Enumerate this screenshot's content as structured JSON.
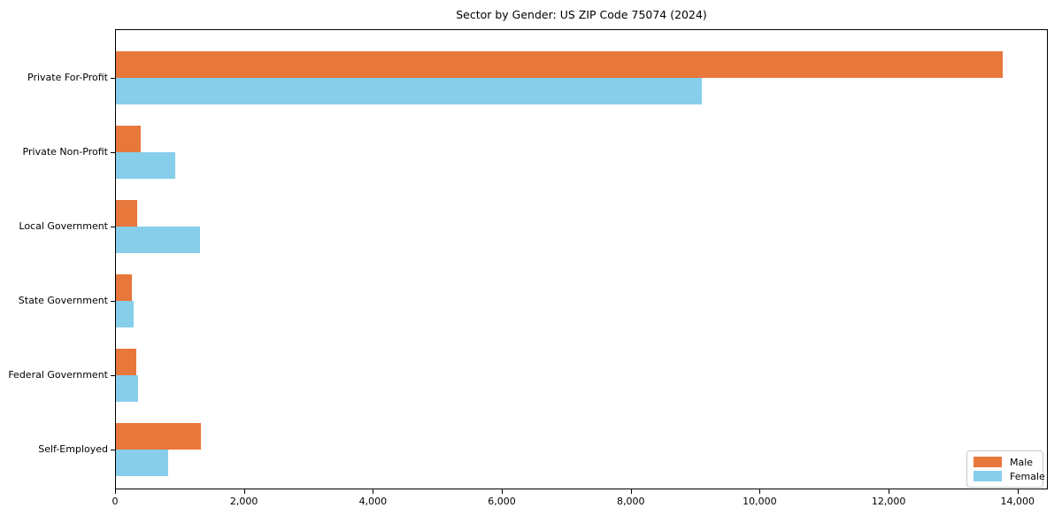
{
  "chart_data": {
    "type": "bar",
    "orientation": "horizontal",
    "title": "Sector by Gender: US ZIP Code 75074 (2024)",
    "categories": [
      "Private For-Profit",
      "Private Non-Profit",
      "Local Government",
      "State Government",
      "Federal Government",
      "Self-Employed"
    ],
    "series": [
      {
        "name": "Male",
        "color": "#e8773b",
        "values": [
          13780,
          385,
          330,
          250,
          315,
          1320
        ]
      },
      {
        "name": "Female",
        "color": "#87ceeb",
        "values": [
          9110,
          920,
          1300,
          275,
          345,
          810
        ]
      }
    ],
    "xlabel": "",
    "ylabel": "",
    "xlim": [
      0,
      14470
    ],
    "x_ticks": [
      0,
      2000,
      4000,
      6000,
      8000,
      10000,
      12000,
      14000
    ],
    "x_tick_labels": [
      "0",
      "2,000",
      "4,000",
      "6,000",
      "8,000",
      "10,000",
      "12,000",
      "14,000"
    ],
    "grid": false,
    "legend": {
      "position": "lower right",
      "entries": [
        "Male",
        "Female"
      ]
    },
    "colors": {
      "male": "#e8773b",
      "female": "#87ceeb",
      "axis": "#000000",
      "background": "#ffffff",
      "legend_border": "#c9c9c9"
    }
  }
}
